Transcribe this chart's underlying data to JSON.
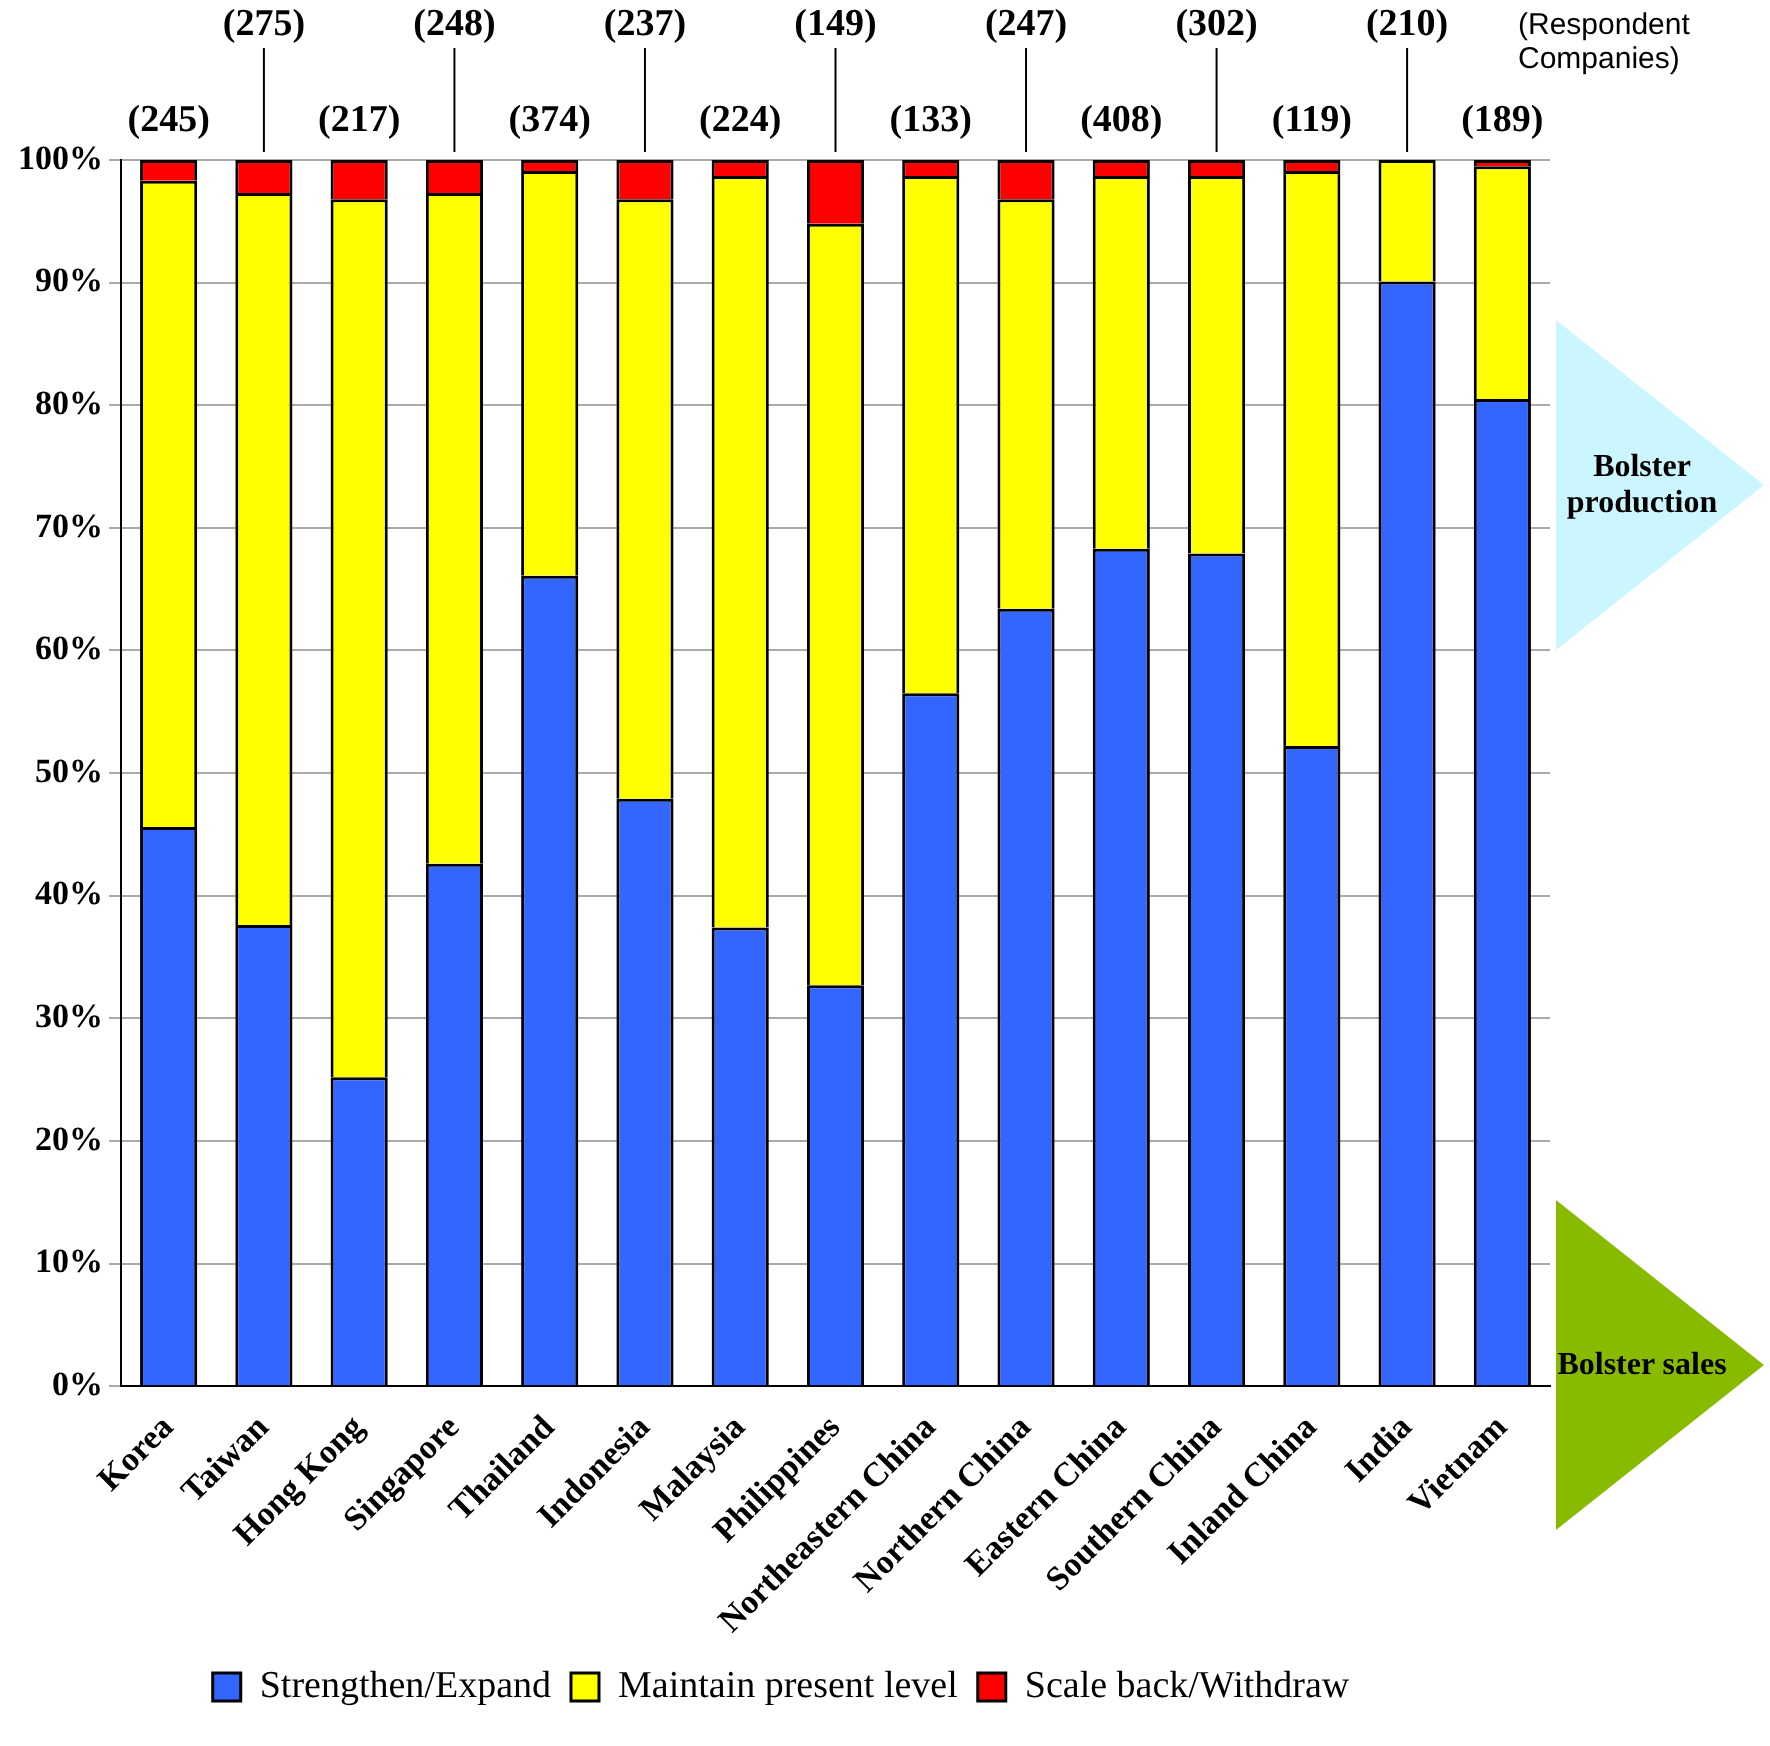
{
  "chart_data": {
    "type": "bar",
    "stacked": true,
    "categories": [
      "Korea",
      "Taiwan",
      "Hong Kong",
      "Singapore",
      "Thailand",
      "Indonesia",
      "Malaysia",
      "Philippines",
      "Northeastern China",
      "Northern China",
      "Eastern China",
      "Southern China",
      "Inland China",
      "India",
      "Vietnam"
    ],
    "series": [
      {
        "name": "Strengthen/Expand",
        "color": "#3366ff",
        "values": [
          45.6,
          37.6,
          25.2,
          42.6,
          66.1,
          47.9,
          37.4,
          32.7,
          56.5,
          63.4,
          68.3,
          67.9,
          52.2,
          90.1,
          80.5
        ]
      },
      {
        "name": "Maintain present level",
        "color": "#ffff00",
        "values": [
          52.7,
          59.7,
          71.6,
          54.7,
          33.0,
          48.9,
          61.3,
          62.1,
          42.2,
          33.4,
          30.4,
          30.8,
          46.9,
          9.9,
          19.0
        ]
      },
      {
        "name": "Scale back/Withdraw",
        "color": "#ff0000",
        "values": [
          1.7,
          2.7,
          3.2,
          2.7,
          0.9,
          3.2,
          1.3,
          5.2,
          1.3,
          3.2,
          1.3,
          1.3,
          0.9,
          0,
          0.5
        ]
      }
    ],
    "ylim": [
      0,
      100
    ],
    "yticks": [
      {
        "value": 0,
        "label": "0%"
      },
      {
        "value": 10,
        "label": "10%"
      },
      {
        "value": 20,
        "label": "20%"
      },
      {
        "value": 30,
        "label": "30%"
      },
      {
        "value": 40,
        "label": "40%"
      },
      {
        "value": 50,
        "label": "50%"
      },
      {
        "value": 60,
        "label": "60%"
      },
      {
        "value": 70,
        "label": "70%"
      },
      {
        "value": 80,
        "label": "80%"
      },
      {
        "value": 90,
        "label": "90%"
      },
      {
        "value": 100,
        "label": "100%"
      }
    ],
    "grid": "y",
    "legend": "bottom",
    "annotations": [
      {
        "text": "(245)",
        "x": "Korea",
        "y": 100
      },
      {
        "text": "(275)",
        "x": "Taiwan",
        "y": 100
      },
      {
        "text": "(217)",
        "x": "Hong Kong",
        "y": 100
      },
      {
        "text": "(248)",
        "x": "Singapore",
        "y": 100
      },
      {
        "text": "(374)",
        "x": "Thailand",
        "y": 100
      },
      {
        "text": "(237)",
        "x": "Indonesia",
        "y": 100
      },
      {
        "text": "(224)",
        "x": "Malaysia",
        "y": 100
      },
      {
        "text": "(149)",
        "x": "Philippines",
        "y": 100
      },
      {
        "text": "(133)",
        "x": "Northeastern China",
        "y": 100
      },
      {
        "text": "(247)",
        "x": "Northern China",
        "y": 100
      },
      {
        "text": "(408)",
        "x": "Eastern China",
        "y": 100
      },
      {
        "text": "(302)",
        "x": "Southern China",
        "y": 100
      },
      {
        "text": "(119)",
        "x": "Inland China",
        "y": 100
      },
      {
        "text": "(210)",
        "x": "India",
        "y": 100
      },
      {
        "text": "(189)",
        "x": "Vietnam",
        "y": 100
      },
      "(Respondent Companies)",
      "Bolster production",
      "Bolster sales"
    ]
  }
}
